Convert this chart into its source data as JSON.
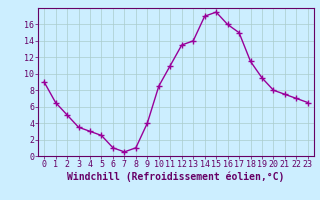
{
  "x": [
    0,
    1,
    2,
    3,
    4,
    5,
    6,
    7,
    8,
    9,
    10,
    11,
    12,
    13,
    14,
    15,
    16,
    17,
    18,
    19,
    20,
    21,
    22,
    23
  ],
  "y": [
    9,
    6.5,
    5,
    3.5,
    3,
    2.5,
    1,
    0.5,
    1,
    4,
    8.5,
    11,
    13.5,
    14,
    17,
    17.5,
    16,
    15,
    11.5,
    9.5,
    8,
    7.5,
    7,
    6.5
  ],
  "line_color": "#990099",
  "marker": "+",
  "bg_color": "#cceeff",
  "grid_color": "#aacccc",
  "axis_color": "#660066",
  "xlabel": "Windchill (Refroidissement éolien,°C)",
  "xlim_min": -0.5,
  "xlim_max": 23.5,
  "ylim_min": 0,
  "ylim_max": 18,
  "yticks": [
    0,
    2,
    4,
    6,
    8,
    10,
    12,
    14,
    16
  ],
  "xticks": [
    0,
    1,
    2,
    3,
    4,
    5,
    6,
    7,
    8,
    9,
    10,
    11,
    12,
    13,
    14,
    15,
    16,
    17,
    18,
    19,
    20,
    21,
    22,
    23
  ],
  "tick_fontsize": 6,
  "xlabel_fontsize": 7
}
